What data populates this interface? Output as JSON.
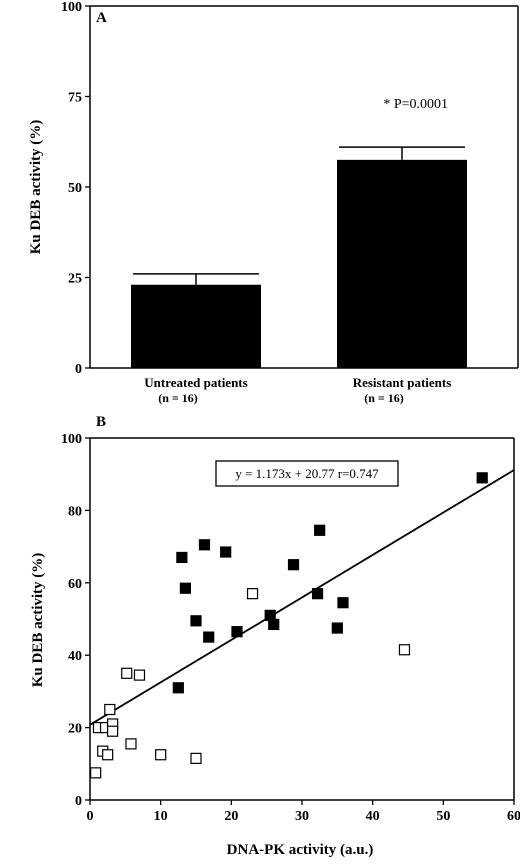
{
  "chart_data": [
    {
      "type": "bar",
      "panel_label": "A",
      "ylabel": "Ku DEB activity  (%)",
      "ylim": [
        0,
        100
      ],
      "yticks": [
        0,
        25,
        50,
        75,
        100
      ],
      "categories": [
        {
          "line1": "Untreated patients",
          "line2": "(n = 16)"
        },
        {
          "line1": "Resistant patients",
          "line2": "(n = 16)"
        }
      ],
      "values": [
        23,
        57.5
      ],
      "errors": [
        3,
        3.5
      ],
      "annotation": "* P=0.0001",
      "bar_color": "#000000"
    },
    {
      "type": "scatter",
      "panel_label": "B",
      "xlabel": "DNA-PK activity (a.u.)",
      "ylabel": "Ku DEB activity (%)",
      "xlim": [
        0,
        60
      ],
      "ylim": [
        0,
        100
      ],
      "xticks": [
        0,
        10,
        20,
        30,
        40,
        50,
        60
      ],
      "yticks": [
        0,
        20,
        40,
        60,
        80,
        100
      ],
      "equation": "y = 1.173x + 20.77  r=0.747",
      "regression": {
        "slope": 1.173,
        "intercept": 20.77
      },
      "series": [
        {
          "marker": "open-square",
          "points": [
            [
              0.8,
              7.5
            ],
            [
              1.2,
              20
            ],
            [
              1.8,
              13.5
            ],
            [
              2.2,
              20
            ],
            [
              2.5,
              12.5
            ],
            [
              2.8,
              25
            ],
            [
              3.2,
              21
            ],
            [
              3.2,
              19
            ],
            [
              5.2,
              35
            ],
            [
              5.8,
              15.5
            ],
            [
              7,
              34.5
            ],
            [
              10,
              12.5
            ],
            [
              15,
              11.5
            ],
            [
              23,
              57
            ],
            [
              44.5,
              41.5
            ]
          ]
        },
        {
          "marker": "filled-square",
          "points": [
            [
              12.5,
              31
            ],
            [
              13,
              67
            ],
            [
              13.5,
              58.5
            ],
            [
              15,
              49.5
            ],
            [
              16.2,
              70.5
            ],
            [
              16.8,
              45
            ],
            [
              19.2,
              68.5
            ],
            [
              20.8,
              46.5
            ],
            [
              25.5,
              51
            ],
            [
              26,
              48.5
            ],
            [
              28.8,
              65
            ],
            [
              32.2,
              57
            ],
            [
              32.5,
              74.5
            ],
            [
              35,
              47.5
            ],
            [
              35.8,
              54.5
            ],
            [
              55.5,
              89
            ]
          ]
        }
      ]
    }
  ]
}
